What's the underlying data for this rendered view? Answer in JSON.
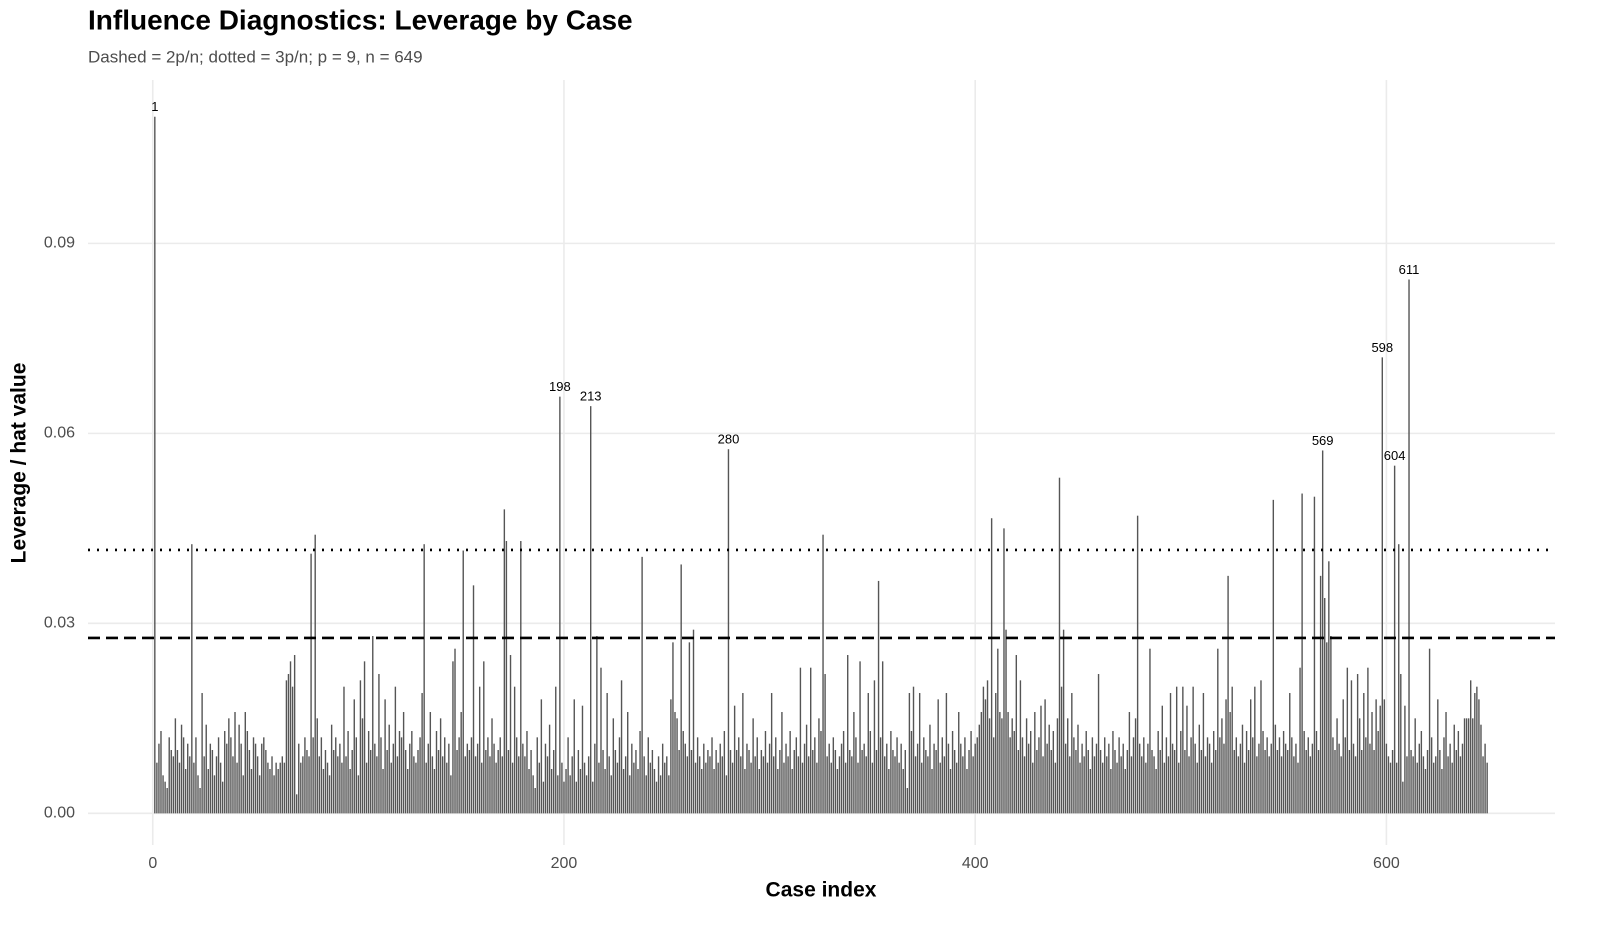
{
  "chart_data": {
    "type": "bar",
    "title": "Influence Diagnostics: Leverage by Case",
    "subtitle": "Dashed = 2p/n; dotted = 3p/n; p = 9, n = 649",
    "x_label": "Case index",
    "y_label": "Leverage / hat value",
    "color": "#555555",
    "grid": true,
    "xlim": [
      -31.5,
      682
    ],
    "ylim": [
      -0.005,
      0.1158
    ],
    "xticks": [
      0,
      200,
      400,
      600
    ],
    "yticks": [
      {
        "value": 0,
        "label": "0.00"
      },
      {
        "value": 0.03,
        "label": "0.03"
      },
      {
        "value": 0.06,
        "label": "0.06"
      },
      {
        "value": 0.09,
        "label": "0.09"
      }
    ],
    "reference_lines": [
      {
        "value": 0.0277,
        "linetype": "dashed"
      },
      {
        "value": 0.0416,
        "linetype": "dotted"
      }
    ],
    "labeled_cases": [
      1,
      198,
      213,
      280,
      569,
      598,
      604,
      611
    ],
    "x": [
      1,
      2,
      3,
      4,
      5,
      6,
      7,
      8,
      9,
      10,
      11,
      12,
      13,
      14,
      15,
      16,
      17,
      18,
      19,
      20,
      21,
      22,
      23,
      24,
      25,
      26,
      27,
      28,
      29,
      30,
      31,
      32,
      33,
      34,
      35,
      36,
      37,
      38,
      39,
      40,
      41,
      42,
      43,
      44,
      45,
      46,
      47,
      48,
      49,
      50,
      51,
      52,
      53,
      54,
      55,
      56,
      57,
      58,
      59,
      60,
      61,
      62,
      63,
      64,
      65,
      66,
      67,
      68,
      69,
      70,
      71,
      72,
      73,
      74,
      75,
      76,
      77,
      78,
      79,
      80,
      81,
      82,
      83,
      84,
      85,
      86,
      87,
      88,
      89,
      90,
      91,
      92,
      93,
      94,
      95,
      96,
      97,
      98,
      99,
      100,
      101,
      102,
      103,
      104,
      105,
      106,
      107,
      108,
      109,
      110,
      111,
      112,
      113,
      114,
      115,
      116,
      117,
      118,
      119,
      120,
      121,
      122,
      123,
      124,
      125,
      126,
      127,
      128,
      129,
      130,
      131,
      132,
      133,
      134,
      135,
      136,
      137,
      138,
      139,
      140,
      141,
      142,
      143,
      144,
      145,
      146,
      147,
      148,
      149,
      150,
      151,
      152,
      153,
      154,
      155,
      156,
      157,
      158,
      159,
      160,
      161,
      162,
      163,
      164,
      165,
      166,
      167,
      168,
      169,
      170,
      171,
      172,
      173,
      174,
      175,
      176,
      177,
      178,
      179,
      180,
      181,
      182,
      183,
      184,
      185,
      186,
      187,
      188,
      189,
      190,
      191,
      192,
      193,
      194,
      195,
      196,
      197,
      198,
      199,
      200,
      201,
      202,
      203,
      204,
      205,
      206,
      207,
      208,
      209,
      210,
      211,
      212,
      213,
      214,
      215,
      216,
      217,
      218,
      219,
      220,
      221,
      222,
      223,
      224,
      225,
      226,
      227,
      228,
      229,
      230,
      231,
      232,
      233,
      234,
      235,
      236,
      237,
      238,
      239,
      240,
      241,
      242,
      243,
      244,
      245,
      246,
      247,
      248,
      249,
      250,
      251,
      252,
      253,
      254,
      255,
      256,
      257,
      258,
      259,
      260,
      261,
      262,
      263,
      264,
      265,
      266,
      267,
      268,
      269,
      270,
      271,
      272,
      273,
      274,
      275,
      276,
      277,
      278,
      279,
      280,
      281,
      282,
      283,
      284,
      285,
      286,
      287,
      288,
      289,
      290,
      291,
      292,
      293,
      294,
      295,
      296,
      297,
      298,
      299,
      300,
      301,
      302,
      303,
      304,
      305,
      306,
      307,
      308,
      309,
      310,
      311,
      312,
      313,
      314,
      315,
      316,
      317,
      318,
      319,
      320,
      321,
      322,
      323,
      324,
      325,
      326,
      327,
      328,
      329,
      330,
      331,
      332,
      333,
      334,
      335,
      336,
      337,
      338,
      339,
      340,
      341,
      342,
      343,
      344,
      345,
      346,
      347,
      348,
      349,
      350,
      351,
      352,
      353,
      354,
      355,
      356,
      357,
      358,
      359,
      360,
      361,
      362,
      363,
      364,
      365,
      366,
      367,
      368,
      369,
      370,
      371,
      372,
      373,
      374,
      375,
      376,
      377,
      378,
      379,
      380,
      381,
      382,
      383,
      384,
      385,
      386,
      387,
      388,
      389,
      390,
      391,
      392,
      393,
      394,
      395,
      396,
      397,
      398,
      399,
      400,
      401,
      402,
      403,
      404,
      405,
      406,
      407,
      408,
      409,
      410,
      411,
      412,
      413,
      414,
      415,
      416,
      417,
      418,
      419,
      420,
      421,
      422,
      423,
      424,
      425,
      426,
      427,
      428,
      429,
      430,
      431,
      432,
      433,
      434,
      435,
      436,
      437,
      438,
      439,
      440,
      441,
      442,
      443,
      444,
      445,
      446,
      447,
      448,
      449,
      450,
      451,
      452,
      453,
      454,
      455,
      456,
      457,
      458,
      459,
      460,
      461,
      462,
      463,
      464,
      465,
      466,
      467,
      468,
      469,
      470,
      471,
      472,
      473,
      474,
      475,
      476,
      477,
      478,
      479,
      480,
      481,
      482,
      483,
      484,
      485,
      486,
      487,
      488,
      489,
      490,
      491,
      492,
      493,
      494,
      495,
      496,
      497,
      498,
      499,
      500,
      501,
      502,
      503,
      504,
      505,
      506,
      507,
      508,
      509,
      510,
      511,
      512,
      513,
      514,
      515,
      516,
      517,
      518,
      519,
      520,
      521,
      522,
      523,
      524,
      525,
      526,
      527,
      528,
      529,
      530,
      531,
      532,
      533,
      534,
      535,
      536,
      537,
      538,
      539,
      540,
      541,
      542,
      543,
      544,
      545,
      546,
      547,
      548,
      549,
      550,
      551,
      552,
      553,
      554,
      555,
      556,
      557,
      558,
      559,
      560,
      561,
      562,
      563,
      564,
      565,
      566,
      567,
      568,
      569,
      570,
      571,
      572,
      573,
      574,
      575,
      576,
      577,
      578,
      579,
      580,
      581,
      582,
      583,
      584,
      585,
      586,
      587,
      588,
      589,
      590,
      591,
      592,
      593,
      594,
      595,
      596,
      597,
      598,
      599,
      600,
      601,
      602,
      603,
      604,
      605,
      606,
      607,
      608,
      609,
      610,
      611,
      612,
      613,
      614,
      615,
      616,
      617,
      618,
      619,
      620,
      621,
      622,
      623,
      624,
      625,
      626,
      627,
      628,
      629,
      630,
      631,
      632,
      633,
      634,
      635,
      636,
      637,
      638,
      639,
      640,
      641,
      642,
      643,
      644,
      645,
      646,
      647,
      648,
      649
    ],
    "values": [
      0.11,
      0.008,
      0.011,
      0.013,
      0.006,
      0.005,
      0.004,
      0.012,
      0.01,
      0.009,
      0.015,
      0.01,
      0.008,
      0.014,
      0.012,
      0.007,
      0.011,
      0.009,
      0.0425,
      0.008,
      0.012,
      0.006,
      0.004,
      0.019,
      0.009,
      0.014,
      0.007,
      0.011,
      0.01,
      0.006,
      0.009,
      0.012,
      0.008,
      0.005,
      0.013,
      0.011,
      0.015,
      0.012,
      0.009,
      0.016,
      0.008,
      0.014,
      0.011,
      0.006,
      0.016,
      0.013,
      0.01,
      0.007,
      0.012,
      0.011,
      0.009,
      0.006,
      0.011,
      0.012,
      0.01,
      0.008,
      0.007,
      0.009,
      0.006,
      0.008,
      0.007,
      0.008,
      0.009,
      0.008,
      0.021,
      0.022,
      0.024,
      0.02,
      0.025,
      0.003,
      0.011,
      0.008,
      0.009,
      0.012,
      0.01,
      0.009,
      0.041,
      0.012,
      0.044,
      0.015,
      0.009,
      0.012,
      0.007,
      0.01,
      0.008,
      0.006,
      0.014,
      0.01,
      0.012,
      0.009,
      0.011,
      0.008,
      0.02,
      0.009,
      0.013,
      0.007,
      0.01,
      0.018,
      0.012,
      0.006,
      0.021,
      0.015,
      0.024,
      0.008,
      0.013,
      0.01,
      0.028,
      0.011,
      0.009,
      0.022,
      0.012,
      0.007,
      0.018,
      0.01,
      0.014,
      0.008,
      0.011,
      0.02,
      0.009,
      0.013,
      0.012,
      0.016,
      0.01,
      0.007,
      0.011,
      0.013,
      0.009,
      0.008,
      0.01,
      0.012,
      0.019,
      0.0425,
      0.008,
      0.011,
      0.016,
      0.009,
      0.007,
      0.013,
      0.01,
      0.015,
      0.009,
      0.012,
      0.008,
      0.011,
      0.006,
      0.024,
      0.026,
      0.01,
      0.012,
      0.016,
      0.0415,
      0.009,
      0.011,
      0.01,
      0.012,
      0.036,
      0.009,
      0.011,
      0.02,
      0.008,
      0.024,
      0.01,
      0.012,
      0.009,
      0.015,
      0.011,
      0.008,
      0.01,
      0.012,
      0.009,
      0.048,
      0.043,
      0.01,
      0.025,
      0.008,
      0.02,
      0.012,
      0.009,
      0.043,
      0.011,
      0.009,
      0.013,
      0.007,
      0.01,
      0.006,
      0.004,
      0.012,
      0.008,
      0.018,
      0.005,
      0.011,
      0.009,
      0.014,
      0.007,
      0.01,
      0.02,
      0.006,
      0.0658,
      0.008,
      0.005,
      0.007,
      0.012,
      0.006,
      0.009,
      0.018,
      0.005,
      0.01,
      0.007,
      0.017,
      0.008,
      0.006,
      0.009,
      0.0643,
      0.005,
      0.011,
      0.028,
      0.008,
      0.023,
      0.01,
      0.007,
      0.019,
      0.009,
      0.006,
      0.015,
      0.01,
      0.008,
      0.012,
      0.021,
      0.007,
      0.009,
      0.016,
      0.006,
      0.011,
      0.008,
      0.01,
      0.007,
      0.013,
      0.0405,
      0.009,
      0.006,
      0.012,
      0.008,
      0.01,
      0.007,
      0.005,
      0.009,
      0.006,
      0.011,
      0.008,
      0.009,
      0.006,
      0.018,
      0.027,
      0.016,
      0.015,
      0.01,
      0.0393,
      0.013,
      0.011,
      0.009,
      0.027,
      0.01,
      0.029,
      0.008,
      0.012,
      0.009,
      0.007,
      0.011,
      0.008,
      0.01,
      0.009,
      0.012,
      0.007,
      0.01,
      0.008,
      0.011,
      0.009,
      0.013,
      0.006,
      0.0575,
      0.01,
      0.008,
      0.017,
      0.01,
      0.012,
      0.009,
      0.019,
      0.007,
      0.011,
      0.01,
      0.008,
      0.015,
      0.009,
      0.012,
      0.007,
      0.01,
      0.009,
      0.013,
      0.008,
      0.011,
      0.019,
      0.009,
      0.012,
      0.007,
      0.01,
      0.016,
      0.008,
      0.011,
      0.009,
      0.013,
      0.007,
      0.01,
      0.012,
      0.009,
      0.023,
      0.008,
      0.011,
      0.014,
      0.009,
      0.023,
      0.01,
      0.012,
      0.008,
      0.015,
      0.013,
      0.044,
      0.022,
      0.009,
      0.011,
      0.008,
      0.012,
      0.01,
      0.007,
      0.009,
      0.011,
      0.013,
      0.008,
      0.025,
      0.01,
      0.009,
      0.016,
      0.012,
      0.008,
      0.024,
      0.01,
      0.011,
      0.009,
      0.019,
      0.013,
      0.008,
      0.021,
      0.01,
      0.0367,
      0.012,
      0.024,
      0.009,
      0.011,
      0.007,
      0.013,
      0.01,
      0.009,
      0.012,
      0.008,
      0.011,
      0.007,
      0.01,
      0.004,
      0.019,
      0.013,
      0.02,
      0.009,
      0.011,
      0.019,
      0.008,
      0.012,
      0.01,
      0.009,
      0.014,
      0.007,
      0.011,
      0.01,
      0.018,
      0.008,
      0.012,
      0.009,
      0.019,
      0.011,
      0.007,
      0.013,
      0.01,
      0.008,
      0.016,
      0.011,
      0.009,
      0.012,
      0.007,
      0.01,
      0.013,
      0.009,
      0.011,
      0.012,
      0.014,
      0.016,
      0.02,
      0.018,
      0.021,
      0.015,
      0.0466,
      0.012,
      0.019,
      0.026,
      0.016,
      0.015,
      0.045,
      0.029,
      0.016,
      0.012,
      0.015,
      0.013,
      0.025,
      0.01,
      0.021,
      0.012,
      0.009,
      0.015,
      0.011,
      0.013,
      0.008,
      0.016,
      0.01,
      0.012,
      0.017,
      0.009,
      0.018,
      0.011,
      0.014,
      0.01,
      0.013,
      0.008,
      0.015,
      0.053,
      0.02,
      0.029,
      0.011,
      0.015,
      0.009,
      0.019,
      0.012,
      0.01,
      0.014,
      0.008,
      0.011,
      0.009,
      0.013,
      0.01,
      0.007,
      0.012,
      0.009,
      0.011,
      0.022,
      0.01,
      0.008,
      0.012,
      0.009,
      0.011,
      0.007,
      0.013,
      0.01,
      0.008,
      0.012,
      0.009,
      0.011,
      0.007,
      0.01,
      0.016,
      0.009,
      0.012,
      0.015,
      0.047,
      0.011,
      0.009,
      0.012,
      0.008,
      0.011,
      0.026,
      0.01,
      0.009,
      0.007,
      0.013,
      0.01,
      0.017,
      0.008,
      0.012,
      0.009,
      0.019,
      0.011,
      0.01,
      0.02,
      0.008,
      0.013,
      0.02,
      0.01,
      0.017,
      0.009,
      0.012,
      0.02,
      0.011,
      0.008,
      0.014,
      0.01,
      0.019,
      0.009,
      0.012,
      0.011,
      0.008,
      0.013,
      0.01,
      0.026,
      0.012,
      0.015,
      0.011,
      0.018,
      0.0375,
      0.016,
      0.02,
      0.01,
      0.012,
      0.009,
      0.011,
      0.014,
      0.008,
      0.013,
      0.01,
      0.018,
      0.012,
      0.02,
      0.009,
      0.011,
      0.021,
      0.013,
      0.01,
      0.012,
      0.009,
      0.011,
      0.0495,
      0.014,
      0.01,
      0.012,
      0.009,
      0.013,
      0.011,
      0.01,
      0.019,
      0.012,
      0.009,
      0.011,
      0.008,
      0.023,
      0.0505,
      0.013,
      0.01,
      0.012,
      0.009,
      0.011,
      0.05,
      0.013,
      0.01,
      0.0375,
      0.0573,
      0.034,
      0.027,
      0.0398,
      0.028,
      0.012,
      0.01,
      0.015,
      0.011,
      0.009,
      0.018,
      0.012,
      0.023,
      0.01,
      0.021,
      0.011,
      0.009,
      0.022,
      0.015,
      0.01,
      0.019,
      0.012,
      0.023,
      0.011,
      0.016,
      0.01,
      0.018,
      0.013,
      0.017,
      0.072,
      0.018,
      0.011,
      0.009,
      0.008,
      0.01,
      0.0549,
      0.008,
      0.0425,
      0.022,
      0.005,
      0.017,
      0.009,
      0.0843,
      0.01,
      0.009,
      0.015,
      0.008,
      0.011,
      0.013,
      0.009,
      0.007,
      0.01,
      0.026,
      0.012,
      0.008,
      0.009,
      0.018,
      0.01,
      0.007,
      0.012,
      0.016,
      0.009,
      0.011,
      0.008,
      0.014,
      0.01,
      0.013,
      0.009,
      0.011,
      0.015,
      0.015,
      0.015,
      0.021,
      0.015,
      0.019,
      0.02,
      0.018,
      0.014,
      0.009,
      0.011,
      0.008
    ]
  }
}
